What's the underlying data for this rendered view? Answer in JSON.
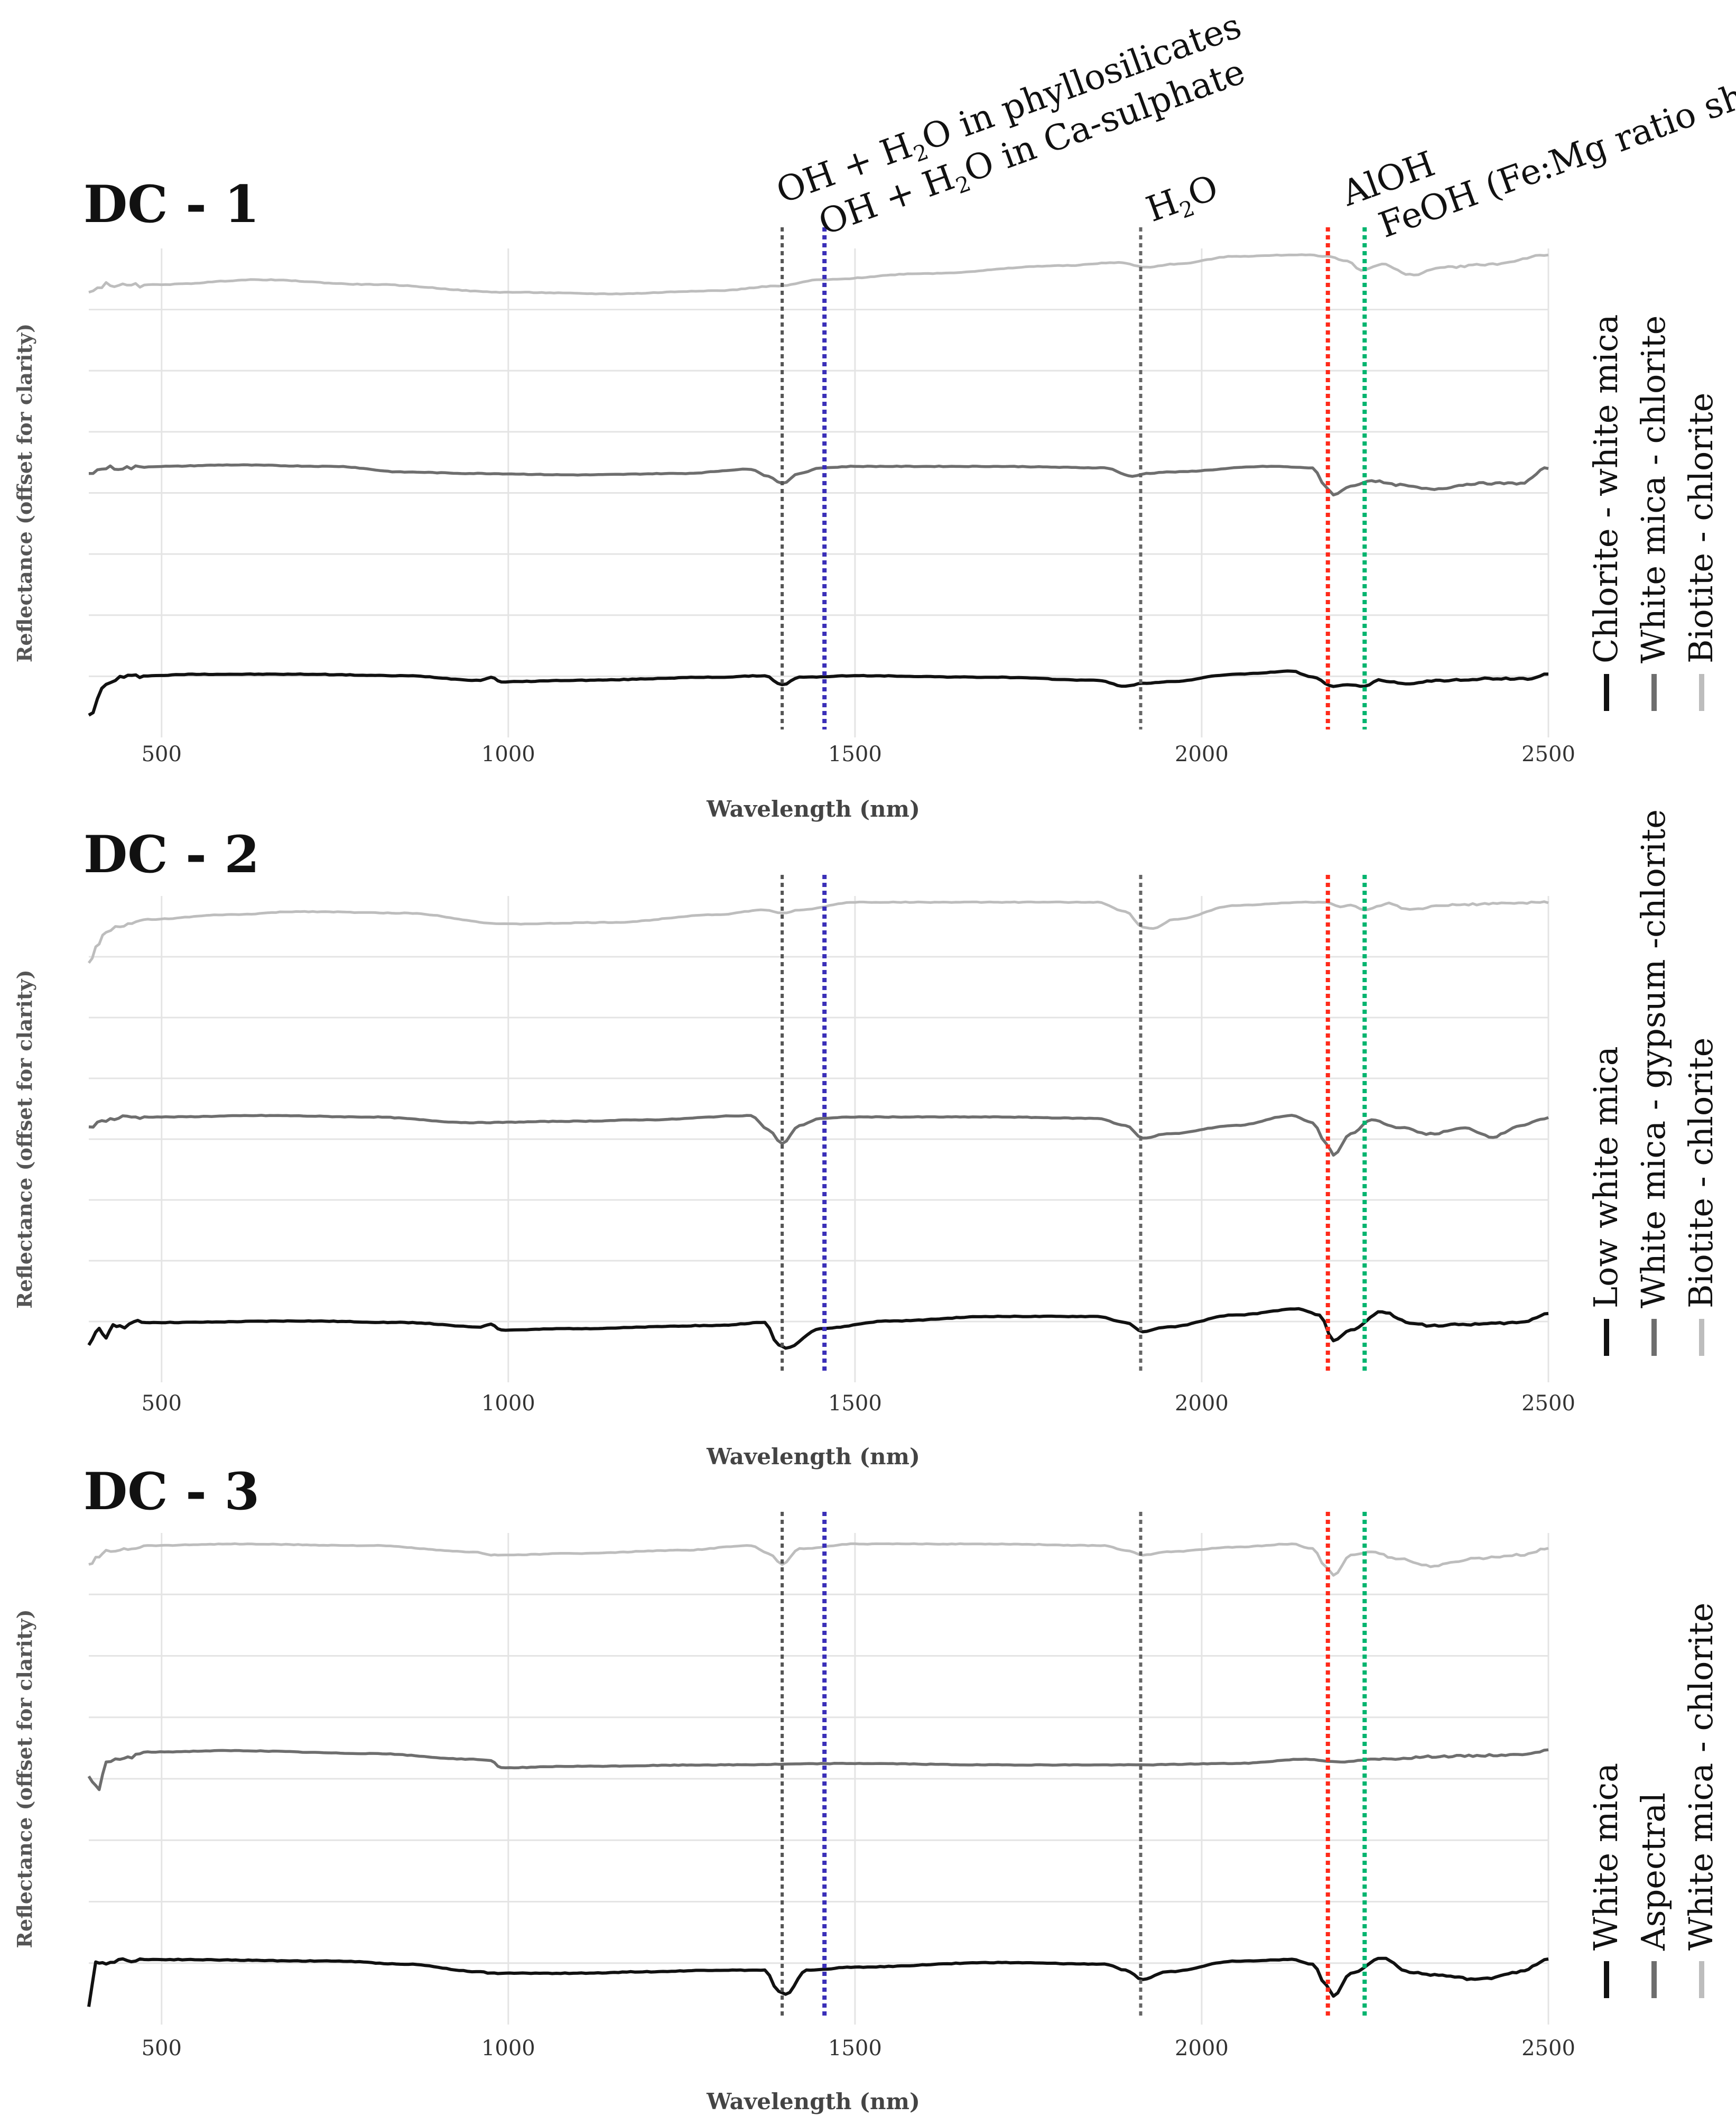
{
  "colors": {
    "oh_phyllo": "#555555",
    "oh_sulphate": "#3a2fb8",
    "h2o": "#666666",
    "aloh": "#ff2a1a",
    "feoh": "#00b46e",
    "series_dark": "#111111",
    "series_mid": "#6e6e6e",
    "series_light": "#bdbdbd",
    "grid": "#e4e4e4"
  },
  "chart_data": [
    {
      "type": "line",
      "title": "DC - 1",
      "xlabel": "Wavelength (nm)",
      "ylabel": "Reflectance (offset for clarity)",
      "xlim": [
        395,
        2500
      ],
      "ylim": [
        0,
        1
      ],
      "xticks": [
        "500",
        "1000",
        "1500",
        "2000",
        "2500"
      ],
      "legend": [
        "Chlorite - white mica",
        "White mica - chlorite",
        "Biotite - chlorite"
      ],
      "series": [
        {
          "name": "Chlorite - white mica",
          "shade": "dark",
          "x": [
            395,
            420,
            440,
            480,
            550,
            700,
            850,
            960,
            975,
            990,
            1100,
            1300,
            1370,
            1395,
            1420,
            1500,
            1700,
            1850,
            1890,
            1915,
            1950,
            2050,
            2130,
            2160,
            2190,
            2210,
            2235,
            2255,
            2300,
            2350,
            2420,
            2470,
            2500
          ],
          "y": [
            0.05,
            0.25,
            0.3,
            0.31,
            0.32,
            0.32,
            0.31,
            0.28,
            0.3,
            0.27,
            0.28,
            0.3,
            0.31,
            0.25,
            0.3,
            0.31,
            0.3,
            0.28,
            0.24,
            0.26,
            0.27,
            0.32,
            0.34,
            0.3,
            0.24,
            0.25,
            0.24,
            0.28,
            0.26,
            0.28,
            0.29,
            0.29,
            0.32
          ]
        },
        {
          "name": "White mica - chlorite",
          "shade": "mid",
          "x": [
            395,
            420,
            450,
            500,
            600,
            750,
            850,
            950,
            1100,
            1250,
            1350,
            1375,
            1395,
            1420,
            1450,
            1500,
            1700,
            1860,
            1900,
            1920,
            1950,
            2100,
            2160,
            2180,
            2190,
            2215,
            2245,
            2280,
            2330,
            2400,
            2460,
            2500
          ],
          "y": [
            0.62,
            0.66,
            0.66,
            0.67,
            0.68,
            0.67,
            0.63,
            0.62,
            0.61,
            0.62,
            0.65,
            0.6,
            0.55,
            0.62,
            0.66,
            0.67,
            0.67,
            0.66,
            0.6,
            0.62,
            0.63,
            0.67,
            0.66,
            0.52,
            0.47,
            0.53,
            0.57,
            0.54,
            0.51,
            0.55,
            0.55,
            0.66
          ]
        },
        {
          "name": "Biotite - chlorite",
          "shade": "light",
          "x": [
            395,
            420,
            450,
            500,
            640,
            800,
            1000,
            1150,
            1300,
            1390,
            1450,
            1600,
            1800,
            1880,
            1920,
            1960,
            2050,
            2150,
            2180,
            2210,
            2230,
            2260,
            2300,
            2350,
            2420,
            2500
          ],
          "y": [
            0.72,
            0.77,
            0.76,
            0.77,
            0.8,
            0.77,
            0.72,
            0.71,
            0.73,
            0.76,
            0.8,
            0.84,
            0.89,
            0.91,
            0.88,
            0.9,
            0.95,
            0.96,
            0.95,
            0.92,
            0.86,
            0.9,
            0.83,
            0.88,
            0.9,
            0.96
          ]
        }
      ]
    },
    {
      "type": "line",
      "title": "DC - 2",
      "xlabel": "Wavelength (nm)",
      "ylabel": "Reflectance (offset for clarity)",
      "xlim": [
        395,
        2500
      ],
      "ylim": [
        0,
        1
      ],
      "xticks": [
        "500",
        "1000",
        "1500",
        "2000",
        "2500"
      ],
      "legend": [
        "Low white mica",
        "White mica - gypsum -chlorite",
        "Biotite - chlorite"
      ],
      "series": [
        {
          "name": "Low white mica",
          "shade": "dark",
          "x": [
            395,
            410,
            420,
            430,
            440,
            460,
            500,
            700,
            850,
            960,
            975,
            990,
            1100,
            1300,
            1370,
            1390,
            1400,
            1450,
            1550,
            1700,
            1850,
            1890,
            1915,
            1950,
            2050,
            2140,
            2170,
            2190,
            2215,
            2260,
            2300,
            2330,
            2400,
            2460,
            2500
          ],
          "y": [
            0.15,
            0.25,
            0.2,
            0.3,
            0.27,
            0.3,
            0.3,
            0.31,
            0.3,
            0.27,
            0.29,
            0.25,
            0.26,
            0.28,
            0.3,
            0.15,
            0.13,
            0.26,
            0.31,
            0.34,
            0.34,
            0.3,
            0.24,
            0.27,
            0.35,
            0.39,
            0.35,
            0.18,
            0.25,
            0.37,
            0.3,
            0.28,
            0.29,
            0.3,
            0.36
          ]
        },
        {
          "name": "White mica - gypsum -chlorite",
          "shade": "mid",
          "x": [
            395,
            420,
            450,
            500,
            650,
            800,
            950,
            1100,
            1200,
            1350,
            1375,
            1395,
            1420,
            1450,
            1500,
            1700,
            1850,
            1890,
            1915,
            1950,
            2050,
            2130,
            2160,
            2180,
            2190,
            2215,
            2245,
            2280,
            2330,
            2380,
            2420,
            2460,
            2500
          ],
          "y": [
            0.57,
            0.62,
            0.64,
            0.64,
            0.65,
            0.64,
            0.6,
            0.61,
            0.62,
            0.65,
            0.55,
            0.45,
            0.58,
            0.63,
            0.64,
            0.64,
            0.63,
            0.58,
            0.49,
            0.52,
            0.58,
            0.65,
            0.6,
            0.45,
            0.37,
            0.52,
            0.62,
            0.57,
            0.52,
            0.56,
            0.5,
            0.58,
            0.63
          ]
        },
        {
          "name": "Biotite - chlorite",
          "shade": "light",
          "x": [
            395,
            410,
            420,
            440,
            480,
            600,
            700,
            850,
            1000,
            1150,
            1300,
            1370,
            1395,
            1420,
            1500,
            1700,
            1850,
            1890,
            1915,
            1930,
            1960,
            2050,
            2150,
            2180,
            2200,
            2215,
            2235,
            2270,
            2300,
            2350,
            2420,
            2500
          ],
          "y": [
            0.57,
            0.7,
            0.78,
            0.8,
            0.85,
            0.88,
            0.9,
            0.89,
            0.82,
            0.83,
            0.88,
            0.91,
            0.89,
            0.91,
            0.96,
            0.96,
            0.96,
            0.9,
            0.8,
            0.79,
            0.85,
            0.94,
            0.96,
            0.96,
            0.93,
            0.94,
            0.91,
            0.95,
            0.91,
            0.94,
            0.95,
            0.96
          ]
        }
      ]
    },
    {
      "type": "line",
      "title": "DC - 3",
      "xlabel": "Wavelength (nm)",
      "ylabel": "Reflectance (offset for clarity)",
      "xlim": [
        395,
        2500
      ],
      "ylim": [
        0,
        1
      ],
      "xticks": [
        "500",
        "1000",
        "1500",
        "2000",
        "2500"
      ],
      "legend": [
        "White mica",
        "Aspectral",
        "White mica - chlorite"
      ],
      "series": [
        {
          "name": "White mica",
          "shade": "dark",
          "x": [
            395,
            405,
            410,
            420,
            450,
            500,
            750,
            850,
            960,
            975,
            990,
            1100,
            1200,
            1300,
            1370,
            1390,
            1400,
            1430,
            1500,
            1700,
            1860,
            1890,
            1915,
            1950,
            2050,
            2130,
            2160,
            2180,
            2190,
            2215,
            2260,
            2300,
            2330,
            2400,
            2460,
            2500
          ],
          "y": [
            0.02,
            0.3,
            0.32,
            0.31,
            0.33,
            0.33,
            0.32,
            0.3,
            0.25,
            0.24,
            0.24,
            0.24,
            0.25,
            0.26,
            0.26,
            0.12,
            0.1,
            0.26,
            0.28,
            0.31,
            0.3,
            0.26,
            0.2,
            0.25,
            0.32,
            0.33,
            0.3,
            0.16,
            0.09,
            0.24,
            0.34,
            0.25,
            0.23,
            0.2,
            0.25,
            0.33
          ]
        },
        {
          "name": "Aspectral",
          "shade": "mid",
          "x": [
            395,
            410,
            420,
            440,
            480,
            600,
            800,
            950,
            975,
            990,
            1100,
            1300,
            1500,
            1700,
            1900,
            2050,
            2150,
            2200,
            2250,
            2350,
            2450,
            2500
          ],
          "y": [
            0.5,
            0.4,
            0.6,
            0.62,
            0.67,
            0.68,
            0.66,
            0.62,
            0.61,
            0.56,
            0.57,
            0.58,
            0.59,
            0.58,
            0.58,
            0.59,
            0.62,
            0.6,
            0.62,
            0.64,
            0.65,
            0.68
          ]
        },
        {
          "name": "White mica - chlorite",
          "shade": "light",
          "x": [
            395,
            410,
            420,
            440,
            480,
            600,
            800,
            950,
            975,
            990,
            1100,
            1250,
            1350,
            1375,
            1395,
            1420,
            1500,
            1700,
            1860,
            1890,
            1915,
            1950,
            2050,
            2130,
            2160,
            2180,
            2190,
            2215,
            2245,
            2280,
            2330,
            2400,
            2460,
            2500
          ],
          "y": [
            0.8,
            0.85,
            0.88,
            0.9,
            0.92,
            0.93,
            0.92,
            0.88,
            0.86,
            0.86,
            0.87,
            0.89,
            0.92,
            0.87,
            0.8,
            0.9,
            0.93,
            0.93,
            0.92,
            0.89,
            0.86,
            0.88,
            0.91,
            0.93,
            0.9,
            0.78,
            0.73,
            0.86,
            0.88,
            0.84,
            0.79,
            0.84,
            0.86,
            0.9
          ]
        }
      ]
    }
  ],
  "annotations": [
    {
      "label": "OH + H2O in phyllosilicates",
      "pre": "OH + H",
      "sub": "2",
      "post": "O in phyllosilicates",
      "x_nm": 1395,
      "color_key": "oh_phyllo"
    },
    {
      "label": "OH + H2O in Ca-sulphate",
      "pre": "OH + H",
      "sub": "2",
      "post": "O in Ca-sulphate",
      "x_nm": 1456,
      "color_key": "oh_sulphate"
    },
    {
      "label": "H2O",
      "pre": "H",
      "sub": "2",
      "post": "O",
      "x_nm": 1912,
      "color_key": "h2o"
    },
    {
      "label": "AlOH",
      "pre": "AlOH",
      "sub": "",
      "post": "",
      "x_nm": 2182,
      "color_key": "aloh"
    },
    {
      "label": "FeOH (Fe:Mg ratio shift)",
      "pre": "FeOH  (Fe:Mg ratio shift)",
      "sub": "",
      "post": "",
      "x_nm": 2235,
      "color_key": "feoh"
    }
  ]
}
